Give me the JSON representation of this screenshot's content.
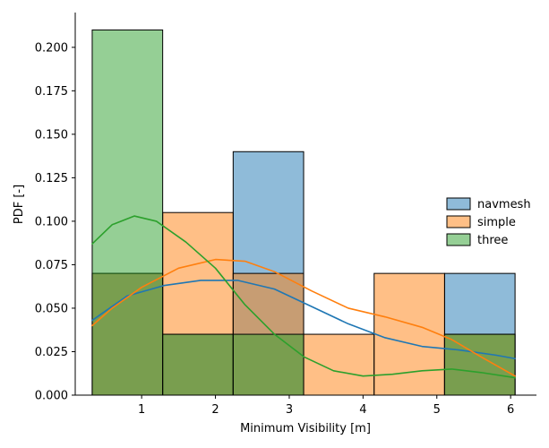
{
  "chart_data": {
    "type": "bar",
    "xlabel": "Minimum Visibility [m]",
    "ylabel": "PDF [-]",
    "xlim": [
      0.1,
      6.35
    ],
    "ylim": [
      0.0,
      0.22
    ],
    "x_ticks": [
      "1",
      "2",
      "3",
      "4",
      "5",
      "6"
    ],
    "y_ticks": [
      "0.000",
      "0.025",
      "0.050",
      "0.075",
      "0.100",
      "0.125",
      "0.150",
      "0.175",
      "0.200"
    ],
    "bin_edges": [
      0.33,
      1.285,
      2.24,
      3.195,
      4.15,
      5.105,
      6.06
    ],
    "legend_position": "right",
    "series": [
      {
        "name": "navmesh",
        "color": "#1f77b4",
        "values": [
          0.07,
          0.035,
          0.14,
          0.0,
          0.0,
          0.07
        ],
        "kde": [
          [
            0.33,
            0.043
          ],
          [
            0.8,
            0.057
          ],
          [
            1.3,
            0.063
          ],
          [
            1.8,
            0.066
          ],
          [
            2.3,
            0.066
          ],
          [
            2.8,
            0.061
          ],
          [
            3.3,
            0.051
          ],
          [
            3.8,
            0.041
          ],
          [
            4.3,
            0.033
          ],
          [
            4.8,
            0.028
          ],
          [
            5.3,
            0.026
          ],
          [
            5.8,
            0.023
          ],
          [
            6.06,
            0.021
          ]
        ]
      },
      {
        "name": "simple",
        "color": "#ff7f0e",
        "values": [
          0.07,
          0.105,
          0.07,
          0.035,
          0.07,
          0.035
        ],
        "kde": [
          [
            0.33,
            0.04
          ],
          [
            0.6,
            0.05
          ],
          [
            1.0,
            0.062
          ],
          [
            1.5,
            0.073
          ],
          [
            2.0,
            0.078
          ],
          [
            2.4,
            0.077
          ],
          [
            2.8,
            0.071
          ],
          [
            3.3,
            0.06
          ],
          [
            3.8,
            0.05
          ],
          [
            4.3,
            0.045
          ],
          [
            4.8,
            0.039
          ],
          [
            5.2,
            0.032
          ],
          [
            5.6,
            0.022
          ],
          [
            6.06,
            0.011
          ]
        ]
      },
      {
        "name": "three",
        "color": "#2ca02c",
        "values": [
          0.21,
          0.035,
          0.035,
          0.0,
          0.0,
          0.035
        ],
        "kde": [
          [
            0.33,
            0.087
          ],
          [
            0.6,
            0.098
          ],
          [
            0.9,
            0.103
          ],
          [
            1.2,
            0.1
          ],
          [
            1.6,
            0.088
          ],
          [
            2.0,
            0.073
          ],
          [
            2.4,
            0.052
          ],
          [
            2.8,
            0.035
          ],
          [
            3.2,
            0.022
          ],
          [
            3.6,
            0.014
          ],
          [
            4.0,
            0.011
          ],
          [
            4.4,
            0.012
          ],
          [
            4.8,
            0.014
          ],
          [
            5.2,
            0.015
          ],
          [
            5.6,
            0.013
          ],
          [
            6.06,
            0.01
          ]
        ]
      }
    ]
  }
}
